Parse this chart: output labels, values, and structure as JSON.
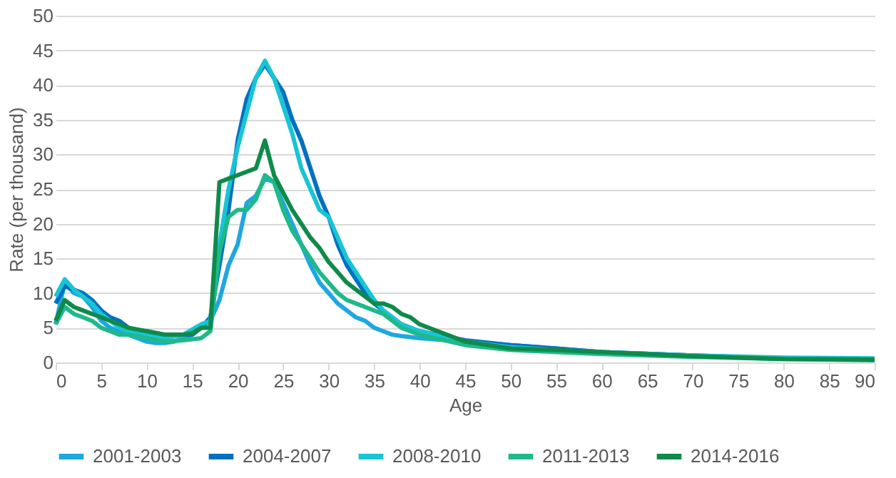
{
  "chart_data": {
    "type": "line",
    "xlabel": "Age",
    "ylabel": "Rate (per thousand)",
    "xlim": [
      0,
      90
    ],
    "xticks": [
      0,
      5,
      10,
      15,
      20,
      25,
      30,
      35,
      40,
      45,
      50,
      55,
      60,
      65,
      70,
      75,
      80,
      85,
      90
    ],
    "ylim": [
      0,
      50
    ],
    "yticks": [
      0,
      5,
      10,
      15,
      20,
      25,
      30,
      35,
      40,
      45,
      50
    ],
    "grid": "y",
    "legend": "bottom",
    "marker": "none",
    "line_style": "solid",
    "series": [
      {
        "name": "2001-2003",
        "color": "#1ea7e1",
        "x": [
          0,
          1,
          2,
          3,
          4,
          5,
          6,
          7,
          8,
          9,
          10,
          11,
          12,
          13,
          14,
          15,
          16,
          17,
          18,
          19,
          20,
          21,
          22,
          23,
          24,
          25,
          26,
          27,
          28,
          29,
          30,
          31,
          32,
          33,
          34,
          35,
          36,
          37,
          38,
          40,
          45,
          50,
          55,
          60,
          70,
          80,
          90
        ],
        "values": [
          5.5,
          11.5,
          10,
          9.5,
          8,
          6,
          5,
          4.5,
          4,
          3.5,
          3,
          2.8,
          2.8,
          3,
          3.5,
          4,
          5,
          6,
          9,
          14,
          17,
          23,
          24,
          26.5,
          26,
          23,
          20,
          17,
          14,
          11.5,
          10,
          8.5,
          7.5,
          6.5,
          6,
          5,
          4.5,
          4,
          3.8,
          3.5,
          3,
          2.5,
          2,
          1.5,
          1,
          0.6,
          0.5
        ]
      },
      {
        "name": "2004-2007",
        "color": "#0070c0",
        "x": [
          0,
          1,
          2,
          3,
          4,
          5,
          6,
          7,
          8,
          9,
          10,
          12,
          14,
          15,
          16,
          17,
          18,
          19,
          20,
          21,
          22,
          23,
          24,
          25,
          26,
          27,
          28,
          29,
          30,
          31,
          32,
          33,
          34,
          35,
          36,
          37,
          38,
          40,
          45,
          50,
          55,
          60,
          70,
          80,
          90
        ],
        "values": [
          8.5,
          11,
          10.5,
          10,
          9,
          7.5,
          6.5,
          6,
          5,
          4.5,
          4.5,
          4,
          4,
          4,
          5,
          6.5,
          14,
          22,
          32,
          38,
          41,
          43,
          41,
          39,
          35,
          32,
          28,
          24,
          21,
          17,
          14,
          12,
          10,
          8.5,
          7.5,
          6.5,
          5.5,
          4.5,
          3.2,
          2.5,
          2,
          1.5,
          1,
          0.6,
          0.4
        ]
      },
      {
        "name": "2008-2010",
        "color": "#19c4d4",
        "x": [
          0,
          1,
          2,
          3,
          4,
          5,
          6,
          7,
          8,
          10,
          12,
          14,
          16,
          17,
          18,
          19,
          20,
          21,
          22,
          23,
          24,
          25,
          26,
          27,
          28,
          29,
          30,
          31,
          32,
          33,
          34,
          35,
          36,
          37,
          38,
          40,
          45,
          50,
          55,
          60,
          70,
          80,
          90
        ],
        "values": [
          9.5,
          12,
          10.5,
          9.5,
          8.5,
          7,
          6,
          5,
          4.5,
          4,
          3.5,
          4,
          5.5,
          6,
          17,
          25,
          31,
          36,
          41,
          43.5,
          41,
          37,
          33,
          28,
          25,
          22,
          21,
          18,
          15,
          13,
          11,
          9,
          7.5,
          6.5,
          5.5,
          4.5,
          3,
          2.2,
          1.8,
          1.5,
          1,
          0.7,
          0.6
        ]
      },
      {
        "name": "2011-2013",
        "color": "#1fb98a",
        "x": [
          0,
          1,
          2,
          3,
          4,
          5,
          6,
          7,
          8,
          10,
          12,
          14,
          16,
          17,
          18,
          19,
          20,
          21,
          22,
          23,
          24,
          25,
          26,
          27,
          28,
          29,
          30,
          31,
          32,
          33,
          34,
          35,
          36,
          37,
          38,
          40,
          45,
          50,
          55,
          60,
          70,
          80,
          90
        ],
        "values": [
          5.5,
          8,
          7,
          6.5,
          6,
          5,
          4.5,
          4,
          4,
          3.5,
          3,
          3.2,
          3.5,
          4.5,
          16,
          21,
          22,
          22,
          23.5,
          27,
          26,
          22,
          19,
          17,
          15,
          13,
          11.5,
          10,
          9,
          8.5,
          8,
          7.5,
          7,
          6,
          5,
          4,
          2.5,
          1.8,
          1.5,
          1.2,
          0.8,
          0.5,
          0.3
        ]
      },
      {
        "name": "2014-2016",
        "color": "#0f8a4a",
        "x": [
          0,
          1,
          2,
          3,
          4,
          5,
          6,
          7,
          8,
          10,
          12,
          14,
          15,
          16,
          17,
          18,
          19,
          20,
          21,
          22,
          23,
          24,
          25,
          26,
          27,
          28,
          29,
          30,
          31,
          32,
          33,
          34,
          35,
          36,
          37,
          38,
          39,
          40,
          42,
          45,
          50,
          55,
          60,
          70,
          80,
          90
        ],
        "values": [
          6,
          9,
          8,
          7.5,
          7,
          6.5,
          6,
          5.5,
          5,
          4.5,
          4,
          4,
          4.2,
          5,
          5,
          26,
          26.5,
          27,
          27.5,
          28,
          32,
          27,
          24.5,
          22,
          20,
          18,
          16.5,
          14.5,
          13,
          11.5,
          10.5,
          9.5,
          8.5,
          8.5,
          8,
          7,
          6.5,
          5.5,
          4.5,
          3,
          2,
          1.8,
          1.5,
          0.9,
          0.5,
          0.4
        ]
      }
    ]
  }
}
